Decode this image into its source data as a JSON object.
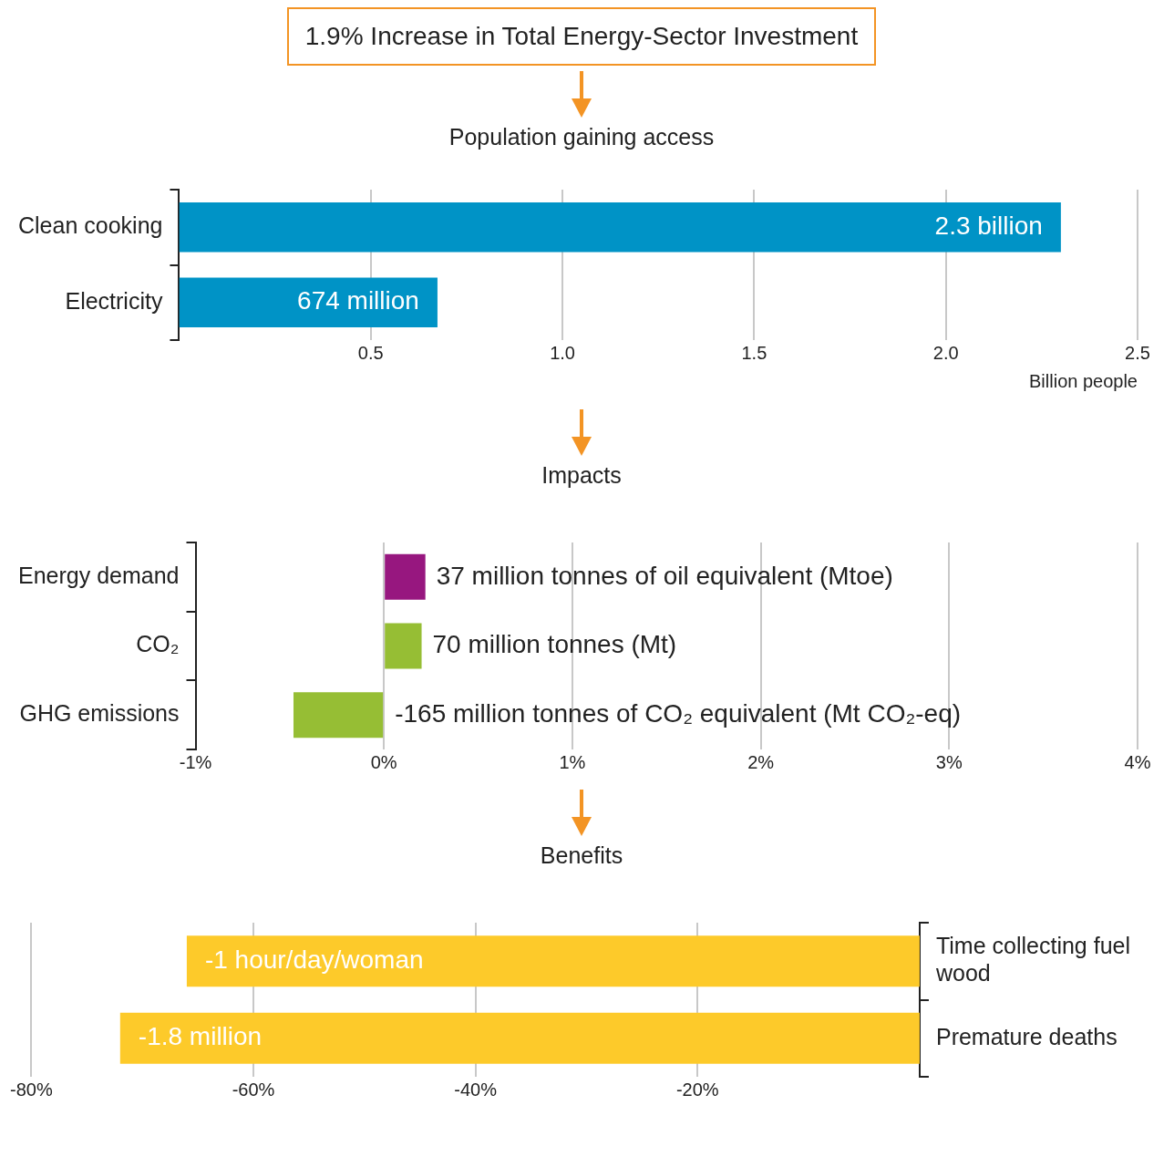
{
  "chart_data": [
    {
      "type": "bar",
      "orientation": "horizontal",
      "title": "1.9% Increase in Total Energy-Sector Investment",
      "subtitle": "Population gaining access",
      "xlabel": "Billion people",
      "categories": [
        "Clean cooking",
        "Electricity"
      ],
      "values": [
        2.3,
        0.674
      ],
      "color": "#0093c6",
      "annotations": [
        {
          "text": "2.3 billion",
          "x": 2.3,
          "y": "Clean cooking"
        },
        {
          "text": "674 million",
          "x": 0.674,
          "y": "Electricity"
        }
      ],
      "xlim": [
        0,
        2.5
      ],
      "xticks": [
        {
          "value": 0.5,
          "label": "0.5"
        },
        {
          "value": 1,
          "label": "1.0"
        },
        {
          "value": 1.5,
          "label": "1.5"
        },
        {
          "value": 2,
          "label": "2.0"
        },
        {
          "value": 2.5,
          "label": "2.5"
        }
      ],
      "grid": "x",
      "legend": false
    },
    {
      "type": "bar",
      "orientation": "horizontal",
      "title": "Impacts",
      "categories": [
        "Energy demand",
        "CO₂",
        "GHG emissions"
      ],
      "values": [
        0.22,
        0.2,
        -0.48
      ],
      "colors": [
        "#97177f",
        "#96be34",
        "#96be34"
      ],
      "annotations": [
        {
          "text": "37 million tonnes of oil equivalent (Mtoe)",
          "x": 0.22,
          "y": "Energy demand"
        },
        {
          "text": "70 million tonnes (Mt)",
          "x": 0.2,
          "y": "CO₂"
        },
        {
          "text": "-165 million tonnes of CO₂ equivalent (Mt CO₂-eq)",
          "x": 0,
          "y": "GHG emissions"
        }
      ],
      "xlim": [
        -1,
        4
      ],
      "xticks": [
        {
          "value": -1,
          "label": "-1%"
        },
        {
          "value": 0,
          "label": "0%"
        },
        {
          "value": 1,
          "label": "1%"
        },
        {
          "value": 2,
          "label": "2%"
        },
        {
          "value": 3,
          "label": "3%"
        },
        {
          "value": 4,
          "label": "4%"
        }
      ],
      "grid": "x",
      "legend": false
    },
    {
      "type": "bar",
      "orientation": "horizontal",
      "title": "Benefits",
      "categories": [
        "Time collecting fuel wood",
        "Premature deaths"
      ],
      "values": [
        -66,
        -72
      ],
      "color": "#fdca2a",
      "annotations": [
        {
          "text": "-1 hour/day/woman",
          "x": -66,
          "y": "Time collecting fuel wood"
        },
        {
          "text": "-1.8 million",
          "x": -72,
          "y": "Premature deaths"
        }
      ],
      "xlim": [
        -80,
        0
      ],
      "xticks": [
        {
          "value": -80,
          "label": "-80%"
        },
        {
          "value": -60,
          "label": "-60%"
        },
        {
          "value": -40,
          "label": "-40%"
        },
        {
          "value": -20,
          "label": "-20%"
        }
      ],
      "grid": "x",
      "legend": false
    }
  ]
}
